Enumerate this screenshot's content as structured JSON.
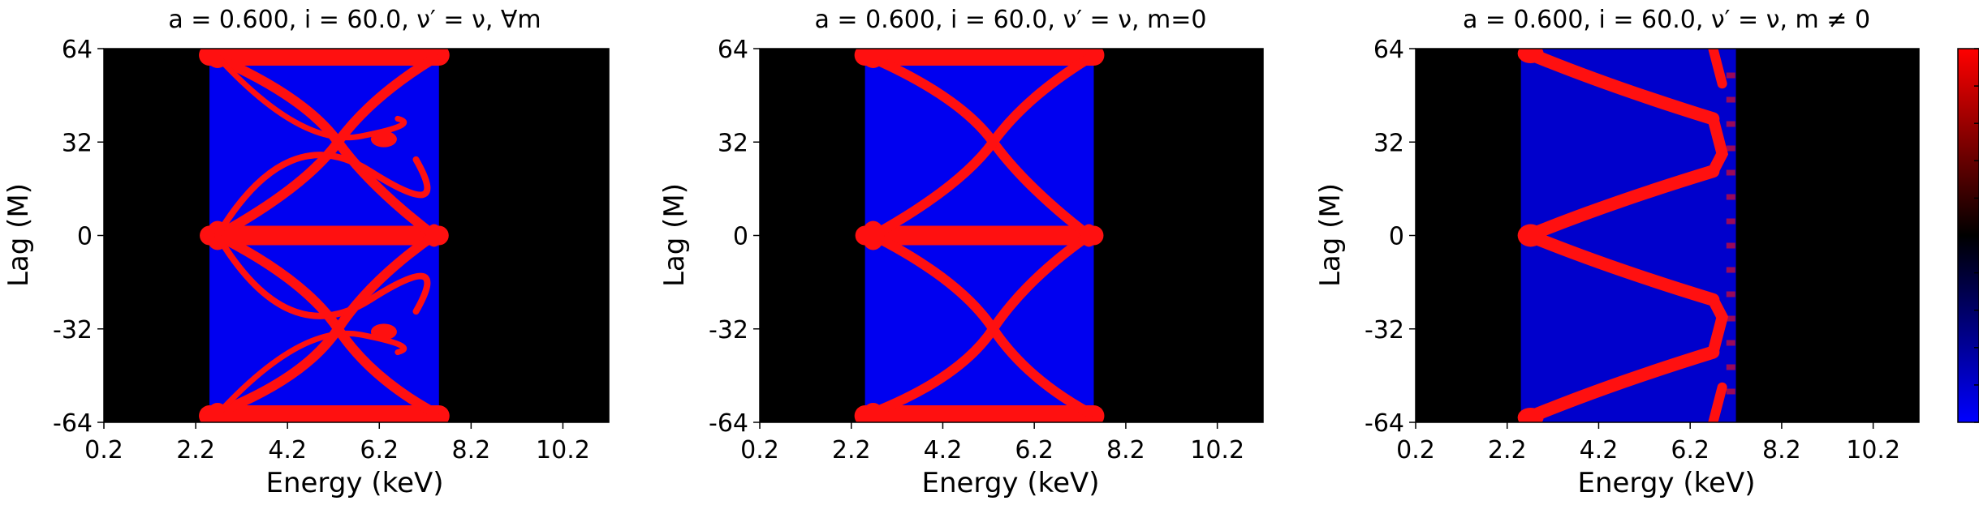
{
  "chart_data": [
    {
      "type": "heatmap",
      "title": "a = 0.600, i = 60.0, ν′ = ν, ∀m",
      "xlabel": "Energy (keV)",
      "ylabel": "Lag (M)",
      "xlim": [
        0.2,
        11.2
      ],
      "ylim": [
        -64,
        64
      ],
      "xticks": [
        "0.2",
        "2.2",
        "4.2",
        "6.2",
        "8.2",
        "10.2"
      ],
      "yticks": [
        "64",
        "32",
        "0",
        "-32",
        "-64"
      ],
      "band_energy_keV": [
        2.5,
        7.5
      ],
      "pattern": "full",
      "colorscale": [
        "#0000ff",
        "#000000",
        "#ff0000"
      ]
    },
    {
      "type": "heatmap",
      "title": "a = 0.600, i = 60.0, ν′ = ν, m=0",
      "xlabel": "Energy (keV)",
      "ylabel": "Lag (M)",
      "xlim": [
        0.2,
        11.2
      ],
      "ylim": [
        -64,
        64
      ],
      "xticks": [
        "0.2",
        "2.2",
        "4.2",
        "6.2",
        "8.2",
        "10.2"
      ],
      "yticks": [
        "64",
        "32",
        "0",
        "-32",
        "-64"
      ],
      "band_energy_keV": [
        2.5,
        7.5
      ],
      "pattern": "m0",
      "colorscale": [
        "#0000ff",
        "#000000",
        "#ff0000"
      ]
    },
    {
      "type": "heatmap",
      "title": "a = 0.600, i = 60.0, ν′ = ν, m ≠ 0",
      "xlabel": "Energy (keV)",
      "ylabel": "Lag (M)",
      "xlim": [
        0.2,
        11.2
      ],
      "ylim": [
        -64,
        64
      ],
      "xticks": [
        "0.2",
        "2.2",
        "4.2",
        "6.2",
        "8.2",
        "10.2"
      ],
      "yticks": [
        "64",
        "32",
        "0",
        "-32",
        "-64"
      ],
      "band_energy_keV": [
        2.5,
        7.2
      ],
      "pattern": "mnot0",
      "colorscale": [
        "#0000ff",
        "#000000",
        "#ff0000"
      ]
    }
  ],
  "colorbar": {
    "colors": [
      "#0000ff",
      "#000000",
      "#ff0000"
    ],
    "ticks_labelled": false
  }
}
